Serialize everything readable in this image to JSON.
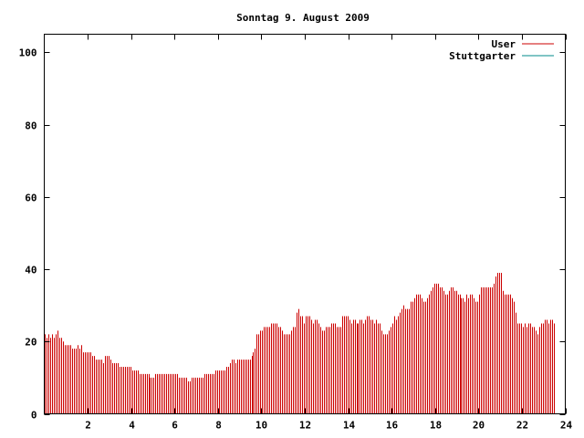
{
  "chart_data": {
    "type": "bar",
    "title": "Sonntag 9. August 2009",
    "xlabel": "",
    "ylabel": "",
    "xlim": [
      0,
      24
    ],
    "ylim": [
      0,
      105
    ],
    "x_ticks": [
      2,
      4,
      6,
      8,
      10,
      12,
      14,
      16,
      18,
      20,
      22,
      24
    ],
    "y_ticks": [
      0,
      20,
      40,
      60,
      80,
      100
    ],
    "grid": false,
    "legend_position": "top-right",
    "colors": {
      "User": "#cc0000",
      "Stuttgarter": "#008b8b"
    },
    "series": [
      {
        "name": "User",
        "interval_minutes": 5,
        "values": [
          22,
          21,
          22,
          21,
          22,
          21,
          22,
          23,
          21,
          21,
          20,
          19,
          19,
          19,
          19,
          18,
          18,
          18,
          19,
          18,
          19,
          17,
          17,
          17,
          17,
          17,
          16,
          16,
          15,
          15,
          15,
          15,
          14,
          16,
          16,
          16,
          15,
          14,
          14,
          14,
          14,
          13,
          13,
          13,
          13,
          13,
          13,
          13,
          12,
          12,
          12,
          12,
          11,
          11,
          11,
          11,
          11,
          11,
          10,
          10,
          10,
          11,
          11,
          11,
          11,
          11,
          11,
          11,
          11,
          11,
          11,
          11,
          11,
          11,
          10,
          10,
          10,
          10,
          10,
          9,
          9,
          10,
          10,
          10,
          10,
          10,
          10,
          10,
          11,
          11,
          11,
          11,
          11,
          11,
          12,
          12,
          12,
          12,
          12,
          12,
          13,
          13,
          14,
          15,
          15,
          14,
          15,
          15,
          15,
          15,
          15,
          15,
          15,
          15,
          16,
          17,
          18,
          22,
          22,
          23,
          23,
          24,
          24,
          24,
          24,
          25,
          25,
          25,
          25,
          24,
          24,
          23,
          22,
          22,
          22,
          22,
          23,
          24,
          24,
          28,
          29,
          27,
          27,
          25,
          27,
          27,
          27,
          26,
          25,
          26,
          26,
          25,
          24,
          23,
          23,
          24,
          24,
          24,
          25,
          25,
          25,
          24,
          24,
          24,
          27,
          27,
          27,
          27,
          26,
          25,
          26,
          26,
          25,
          25,
          26,
          26,
          25,
          26,
          27,
          27,
          26,
          26,
          25,
          26,
          25,
          25,
          23,
          22,
          22,
          22,
          23,
          24,
          25,
          27,
          26,
          27,
          28,
          29,
          30,
          29,
          29,
          29,
          31,
          31,
          32,
          33,
          33,
          33,
          32,
          31,
          31,
          32,
          33,
          34,
          35,
          36,
          36,
          36,
          35,
          35,
          34,
          33,
          33,
          34,
          35,
          35,
          34,
          34,
          33,
          33,
          32,
          32,
          31,
          33,
          32,
          33,
          33,
          32,
          31,
          31,
          33,
          35,
          35,
          35,
          35,
          35,
          35,
          35,
          36,
          38,
          39,
          39,
          39,
          34,
          33,
          33,
          33,
          33,
          32,
          31,
          28,
          25,
          25,
          25,
          24,
          25,
          24,
          25,
          25,
          24,
          24,
          23,
          22,
          24,
          25,
          25,
          26,
          26,
          25,
          26,
          26,
          25
        ]
      },
      {
        "name": "Stuttgarter",
        "values": []
      }
    ]
  }
}
